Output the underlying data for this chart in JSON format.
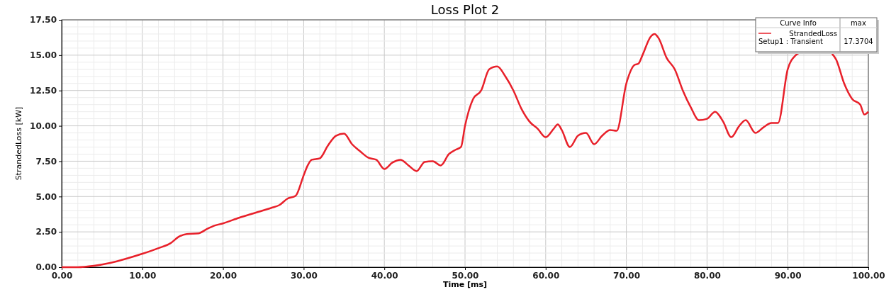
{
  "chart_data": {
    "type": "line",
    "title": "Loss Plot 2",
    "xlabel": "Time [ms]",
    "ylabel": "StrandedLoss [kW]",
    "xlim": [
      0,
      100
    ],
    "xticks": [
      {
        "value": 0,
        "label": "0.00"
      },
      {
        "value": 10,
        "label": "10.00"
      },
      {
        "value": 20,
        "label": "20.00"
      },
      {
        "value": 30,
        "label": "30.00"
      },
      {
        "value": 40,
        "label": "40.00"
      },
      {
        "value": 50,
        "label": "50.00"
      },
      {
        "value": 60,
        "label": "60.00"
      },
      {
        "value": 70,
        "label": "70.00"
      },
      {
        "value": 80,
        "label": "80.00"
      },
      {
        "value": 90,
        "label": "90.00"
      },
      {
        "value": 100,
        "label": "100.00"
      }
    ],
    "ylim": [
      0,
      17.5
    ],
    "yticks": [
      {
        "value": 0,
        "label": "0.00"
      },
      {
        "value": 2.5,
        "label": "2.50"
      },
      {
        "value": 5,
        "label": "5.00"
      },
      {
        "value": 7.5,
        "label": "7.50"
      },
      {
        "value": 10,
        "label": "10.00"
      },
      {
        "value": 12.5,
        "label": "12.50"
      },
      {
        "value": 15,
        "label": "15.00"
      },
      {
        "value": 17.5,
        "label": "17.50"
      }
    ],
    "grid": true,
    "legend": "top right",
    "marker": "none",
    "line_style": "solid",
    "annotations": [
      "Curve Info",
      "max",
      "Setup1 : Transient",
      "17.3704"
    ],
    "x": [
      0,
      2,
      4,
      6,
      8,
      10,
      12,
      13.5,
      14.5,
      15.5,
      17,
      18,
      19,
      20,
      22,
      24,
      26,
      27,
      28,
      29,
      30,
      30.5,
      31,
      32,
      33,
      34,
      35,
      36,
      37,
      38,
      39,
      40,
      41,
      42,
      43,
      44,
      45,
      46,
      47,
      48,
      48.8,
      49.5,
      50,
      51,
      52,
      53,
      54,
      55,
      56,
      57,
      58,
      59,
      60,
      61,
      61.5,
      62,
      63,
      64,
      65,
      66,
      67,
      68,
      68.8,
      70,
      71,
      71.5,
      72,
      73,
      73.5,
      74,
      75,
      76,
      77,
      78,
      79,
      80,
      81,
      82,
      83,
      84,
      84.8,
      86,
      87,
      88,
      88.8,
      90,
      91,
      91.5,
      92,
      93,
      94,
      95,
      95.5,
      96,
      97,
      98,
      99,
      99.5,
      100
    ],
    "series": [
      {
        "name": "StrandedLoss",
        "color": "#e8202a",
        "values": [
          0,
          0,
          0.1,
          0.3,
          0.6,
          0.95,
          1.35,
          1.7,
          2.15,
          2.35,
          2.4,
          2.7,
          2.95,
          3.1,
          3.5,
          3.85,
          4.2,
          4.4,
          4.85,
          5.05,
          6.5,
          7.2,
          7.6,
          7.7,
          8.6,
          9.3,
          9.45,
          8.7,
          8.2,
          7.75,
          7.6,
          6.95,
          7.4,
          7.6,
          7.2,
          6.8,
          7.45,
          7.5,
          7.2,
          8.0,
          8.3,
          8.5,
          10.0,
          11.9,
          12.5,
          14.0,
          14.2,
          13.5,
          12.5,
          11.2,
          10.3,
          9.8,
          9.2,
          9.8,
          10.1,
          9.7,
          8.5,
          9.3,
          9.5,
          8.7,
          9.3,
          9.7,
          9.65,
          13.0,
          14.3,
          14.4,
          15.0,
          16.3,
          16.5,
          16.2,
          14.8,
          14.0,
          12.5,
          11.3,
          10.4,
          10.5,
          11.0,
          10.3,
          9.2,
          10.0,
          10.4,
          9.5,
          9.9,
          10.2,
          10.2,
          14.0,
          15.0,
          15.2,
          null,
          null,
          null,
          null,
          15.1,
          14.7,
          13.0,
          11.9,
          11.5,
          10.8,
          11.0
        ]
      }
    ]
  }
}
